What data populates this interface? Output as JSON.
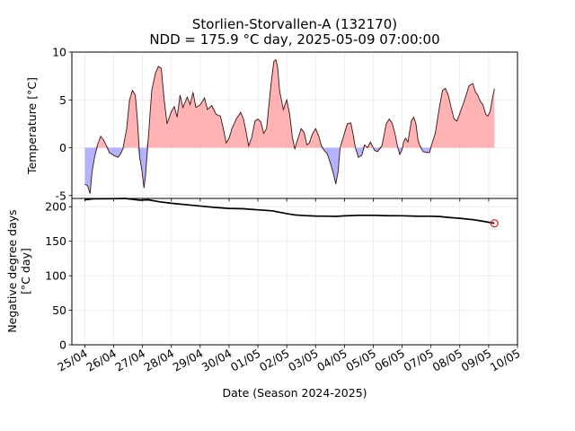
{
  "chart_data": {
    "type": "line",
    "title_line1": "Storlien-Storvallen-A (132170)",
    "title_line2": "NDD = 175.9 °C day, 2025-05-09 07:00:00",
    "xlabel": "Date (Season 2024-2025)",
    "x_ticks": [
      "25/04",
      "26/04",
      "27/04",
      "28/04",
      "29/04",
      "30/04",
      "01/05",
      "02/05",
      "03/05",
      "04/05",
      "05/05",
      "06/05",
      "07/05",
      "08/05",
      "09/05",
      "10/05"
    ],
    "xlim_days": [
      -0.45,
      15.0
    ],
    "top_panel": {
      "ylabel": "Temperature [°C]",
      "ylim": [
        -5.3,
        10
      ],
      "yticks": [
        -5,
        0,
        5,
        10
      ],
      "positive_color": "#ff9999",
      "negative_color": "#9999ff",
      "line_color": "#3a1414",
      "temperature": [
        [
          0.0,
          -3.8
        ],
        [
          0.1,
          -4.0
        ],
        [
          0.18,
          -4.8
        ],
        [
          0.25,
          -2.5
        ],
        [
          0.35,
          -0.8
        ],
        [
          0.45,
          0.4
        ],
        [
          0.55,
          1.2
        ],
        [
          0.65,
          0.8
        ],
        [
          0.75,
          0.2
        ],
        [
          0.85,
          -0.5
        ],
        [
          1.0,
          -0.8
        ],
        [
          1.15,
          -1.0
        ],
        [
          1.25,
          -0.6
        ],
        [
          1.32,
          -0.1
        ],
        [
          1.45,
          2.0
        ],
        [
          1.55,
          5.0
        ],
        [
          1.65,
          6.0
        ],
        [
          1.75,
          5.5
        ],
        [
          1.82,
          3.0
        ],
        [
          1.9,
          -1.0
        ],
        [
          1.97,
          -2.2
        ],
        [
          2.05,
          -4.2
        ],
        [
          2.1,
          -3.0
        ],
        [
          2.2,
          1.0
        ],
        [
          2.32,
          6.0
        ],
        [
          2.45,
          7.8
        ],
        [
          2.55,
          8.5
        ],
        [
          2.65,
          8.3
        ],
        [
          2.75,
          5.0
        ],
        [
          2.85,
          2.5
        ],
        [
          3.0,
          3.8
        ],
        [
          3.1,
          4.3
        ],
        [
          3.2,
          3.2
        ],
        [
          3.3,
          5.5
        ],
        [
          3.4,
          4.2
        ],
        [
          3.55,
          5.3
        ],
        [
          3.65,
          4.5
        ],
        [
          3.75,
          5.8
        ],
        [
          3.85,
          4.2
        ],
        [
          4.0,
          4.5
        ],
        [
          4.15,
          5.2
        ],
        [
          4.25,
          4.0
        ],
        [
          4.4,
          4.4
        ],
        [
          4.55,
          3.5
        ],
        [
          4.7,
          3.3
        ],
        [
          4.8,
          2.0
        ],
        [
          4.9,
          0.5
        ],
        [
          5.0,
          1.0
        ],
        [
          5.1,
          2.0
        ],
        [
          5.25,
          3.0
        ],
        [
          5.4,
          3.7
        ],
        [
          5.5,
          3.0
        ],
        [
          5.6,
          1.5
        ],
        [
          5.68,
          0.2
        ],
        [
          5.78,
          1.0
        ],
        [
          5.9,
          2.8
        ],
        [
          6.0,
          3.0
        ],
        [
          6.1,
          2.7
        ],
        [
          6.2,
          1.5
        ],
        [
          6.3,
          2.0
        ],
        [
          6.45,
          6.5
        ],
        [
          6.55,
          9.0
        ],
        [
          6.62,
          9.2
        ],
        [
          6.68,
          8.5
        ],
        [
          6.75,
          6.0
        ],
        [
          6.88,
          4.0
        ],
        [
          7.0,
          5.0
        ],
        [
          7.1,
          3.5
        ],
        [
          7.2,
          1.0
        ],
        [
          7.28,
          -0.1
        ],
        [
          7.35,
          0.6
        ],
        [
          7.5,
          2.0
        ],
        [
          7.6,
          1.6
        ],
        [
          7.7,
          0.3
        ],
        [
          7.78,
          0.5
        ],
        [
          7.9,
          1.5
        ],
        [
          8.0,
          2.0
        ],
        [
          8.1,
          1.3
        ],
        [
          8.2,
          0.2
        ],
        [
          8.3,
          -0.3
        ],
        [
          8.4,
          -0.6
        ],
        [
          8.5,
          -1.5
        ],
        [
          8.6,
          -2.5
        ],
        [
          8.7,
          -3.8
        ],
        [
          8.78,
          -2.5
        ],
        [
          8.85,
          0.0
        ],
        [
          8.95,
          1.0
        ],
        [
          9.1,
          2.5
        ],
        [
          9.22,
          2.6
        ],
        [
          9.3,
          1.4
        ],
        [
          9.38,
          0.0
        ],
        [
          9.48,
          -1.0
        ],
        [
          9.6,
          -0.8
        ],
        [
          9.7,
          0.3
        ],
        [
          9.8,
          0.0
        ],
        [
          9.9,
          0.6
        ],
        [
          9.98,
          0.1
        ],
        [
          10.05,
          -0.3
        ],
        [
          10.15,
          -0.4
        ],
        [
          10.3,
          0.2
        ],
        [
          10.45,
          2.5
        ],
        [
          10.55,
          3.0
        ],
        [
          10.65,
          2.6
        ],
        [
          10.75,
          1.5
        ],
        [
          10.85,
          0.0
        ],
        [
          10.92,
          -0.7
        ],
        [
          11.0,
          -0.2
        ],
        [
          11.05,
          0.6
        ],
        [
          11.12,
          1.0
        ],
        [
          11.2,
          0.6
        ],
        [
          11.32,
          2.8
        ],
        [
          11.4,
          3.2
        ],
        [
          11.48,
          2.5
        ],
        [
          11.55,
          0.8
        ],
        [
          11.62,
          0.2
        ],
        [
          11.72,
          -0.4
        ],
        [
          11.85,
          -0.5
        ],
        [
          11.95,
          -0.5
        ],
        [
          12.02,
          0.3
        ],
        [
          12.15,
          1.5
        ],
        [
          12.28,
          4.0
        ],
        [
          12.4,
          6.0
        ],
        [
          12.5,
          6.2
        ],
        [
          12.6,
          5.5
        ],
        [
          12.7,
          4.2
        ],
        [
          12.8,
          3.0
        ],
        [
          12.9,
          2.8
        ],
        [
          13.0,
          3.6
        ],
        [
          13.12,
          4.6
        ],
        [
          13.22,
          5.5
        ],
        [
          13.32,
          6.5
        ],
        [
          13.45,
          6.7
        ],
        [
          13.55,
          5.8
        ],
        [
          13.62,
          5.5
        ],
        [
          13.72,
          4.8
        ],
        [
          13.8,
          4.5
        ],
        [
          13.9,
          3.5
        ],
        [
          13.97,
          3.3
        ],
        [
          14.05,
          3.8
        ],
        [
          14.12,
          5.0
        ],
        [
          14.2,
          6.2
        ]
      ]
    },
    "bottom_panel": {
      "ylabel_line1": "Negative degree days",
      "ylabel_line2": "[°C day]",
      "ylim": [
        0,
        212
      ],
      "yticks": [
        0,
        50,
        100,
        150,
        200
      ],
      "line_color": "#000000",
      "marker_color": "#d62728",
      "ndd": [
        [
          0.0,
          210.0
        ],
        [
          0.3,
          211.5
        ],
        [
          1.0,
          211.7
        ],
        [
          1.4,
          212.0
        ],
        [
          1.9,
          209.5
        ],
        [
          2.2,
          210.0
        ],
        [
          2.6,
          207.0
        ],
        [
          3.0,
          205.0
        ],
        [
          3.5,
          203.0
        ],
        [
          4.0,
          201.0
        ],
        [
          4.5,
          199.0
        ],
        [
          5.0,
          197.5
        ],
        [
          5.5,
          197.0
        ],
        [
          6.0,
          195.5
        ],
        [
          6.5,
          194.0
        ],
        [
          7.0,
          190.0
        ],
        [
          7.3,
          188.0
        ],
        [
          7.6,
          187.2
        ],
        [
          8.0,
          186.5
        ],
        [
          8.5,
          186.2
        ],
        [
          8.7,
          186.0
        ],
        [
          9.0,
          186.8
        ],
        [
          9.5,
          187.5
        ],
        [
          10.0,
          187.5
        ],
        [
          10.5,
          187.0
        ],
        [
          11.0,
          186.9
        ],
        [
          11.5,
          186.3
        ],
        [
          12.0,
          186.2
        ],
        [
          12.3,
          185.8
        ],
        [
          12.6,
          184.5
        ],
        [
          13.0,
          183.2
        ],
        [
          13.5,
          181.0
        ],
        [
          13.8,
          179.0
        ],
        [
          14.2,
          176.0
        ]
      ],
      "last_point": [
        14.2,
        175.9
      ]
    }
  }
}
